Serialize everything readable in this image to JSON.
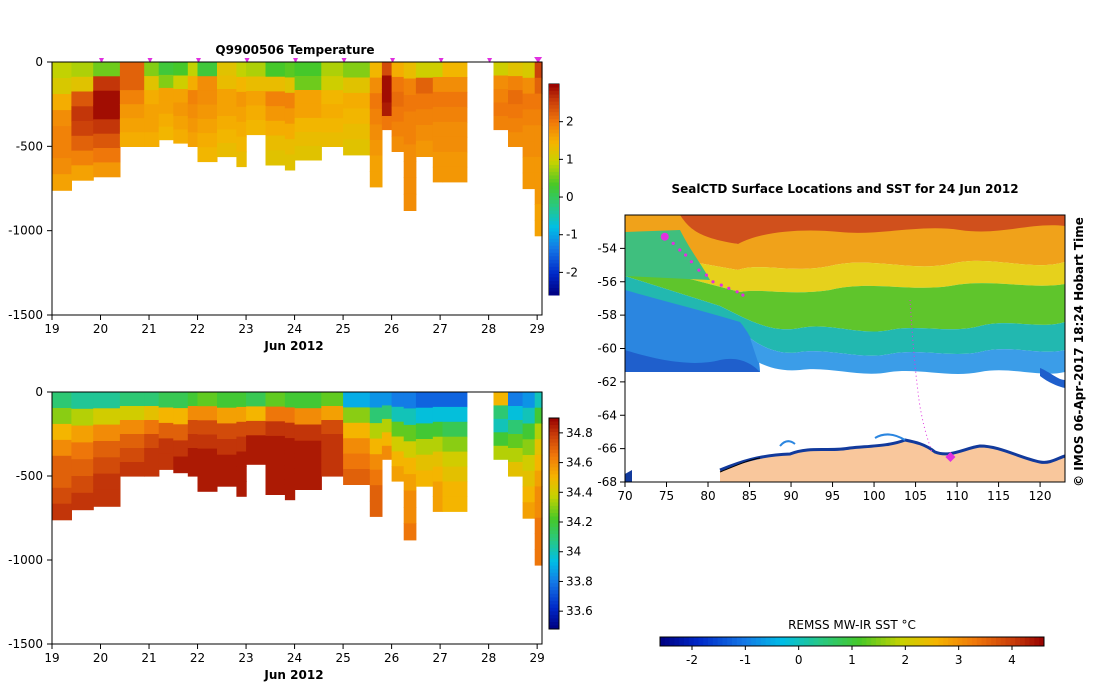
{
  "chart_data": [
    {
      "type": "heatmap",
      "title": "Q9900506  Temperature",
      "xlabel": "Jun 2012",
      "ylabel": "",
      "x_ticks": [
        "19",
        "20",
        "21",
        "22",
        "23",
        "24",
        "25",
        "26",
        "27",
        "28",
        "29"
      ],
      "y_ticks": [
        "0",
        "-500",
        "-1000",
        "-1500"
      ],
      "xlim": [
        19,
        29.1
      ],
      "ylim": [
        -1500,
        0
      ],
      "colorbar_ticks": [
        "2",
        "1",
        "0",
        "-1",
        "-2"
      ],
      "colorbar_range": [
        -2.6,
        3.0
      ],
      "markers": [
        20,
        21,
        22,
        23,
        24,
        25,
        26,
        27,
        28,
        29
      ],
      "profiles": [
        {
          "start": 19.0,
          "end": 19.4,
          "depth": 760,
          "values": [
            0.9,
            1.1,
            1.5,
            1.8,
            1.9,
            1.9,
            1.8,
            1.6
          ]
        },
        {
          "start": 19.4,
          "end": 19.85,
          "depth": 700,
          "values": [
            0.8,
            1.2,
            2.3,
            2.6,
            2.5,
            2.2,
            1.9,
            1.6
          ]
        },
        {
          "start": 19.85,
          "end": 20.4,
          "depth": 680,
          "values": [
            0.5,
            2.6,
            2.9,
            2.9,
            2.6,
            2.3,
            2.0,
            1.7
          ]
        },
        {
          "start": 20.4,
          "end": 20.9,
          "depth": 500,
          "values": [
            2.2,
            2.2,
            1.9,
            1.7,
            1.6,
            1.5
          ]
        },
        {
          "start": 20.9,
          "end": 21.2,
          "depth": 500,
          "values": [
            0.6,
            1.2,
            1.5,
            1.6,
            1.6,
            1.5
          ]
        },
        {
          "start": 21.2,
          "end": 21.5,
          "depth": 460,
          "values": [
            0.2,
            0.6,
            1.6,
            1.6,
            1.5,
            1.4
          ]
        },
        {
          "start": 21.5,
          "end": 21.8,
          "depth": 480,
          "values": [
            0.3,
            1.0,
            1.6,
            1.7,
            1.6,
            1.5
          ]
        },
        {
          "start": 21.8,
          "end": 22.0,
          "depth": 500,
          "values": [
            0.9,
            1.5,
            1.9,
            1.8,
            1.7,
            1.6
          ]
        },
        {
          "start": 22.0,
          "end": 22.4,
          "depth": 590,
          "values": [
            0.2,
            1.8,
            1.8,
            1.7,
            1.6,
            1.5,
            1.4
          ]
        },
        {
          "start": 22.4,
          "end": 22.8,
          "depth": 560,
          "values": [
            1.2,
            1.3,
            1.6,
            1.6,
            1.5,
            1.4,
            1.3
          ]
        },
        {
          "start": 22.8,
          "end": 23.0,
          "depth": 620,
          "values": [
            0.9,
            1.4,
            1.7,
            1.6,
            1.5,
            1.4,
            1.3
          ]
        },
        {
          "start": 23.0,
          "end": 23.4,
          "depth": 430,
          "values": [
            0.8,
            1.3,
            1.6,
            1.5,
            1.4
          ]
        },
        {
          "start": 23.4,
          "end": 23.8,
          "depth": 610,
          "values": [
            0.3,
            1.3,
            1.9,
            1.7,
            1.5,
            1.3,
            1.2
          ]
        },
        {
          "start": 23.8,
          "end": 24.0,
          "depth": 640,
          "values": [
            0.4,
            1.2,
            1.9,
            1.7,
            1.5,
            1.3,
            1.2
          ]
        },
        {
          "start": 24.0,
          "end": 24.55,
          "depth": 580,
          "values": [
            0.3,
            0.5,
            1.6,
            1.6,
            1.4,
            1.3,
            1.2
          ]
        },
        {
          "start": 24.55,
          "end": 25.0,
          "depth": 500,
          "values": [
            0.8,
            1.0,
            1.4,
            1.5,
            1.4,
            1.3
          ]
        },
        {
          "start": 25.0,
          "end": 25.55,
          "depth": 550,
          "values": [
            0.6,
            1.2,
            1.5,
            1.4,
            1.3,
            1.2
          ]
        },
        {
          "start": 25.55,
          "end": 25.8,
          "depth": 740,
          "values": [
            1.4,
            1.8,
            2.0,
            1.9,
            1.8,
            1.7,
            1.6,
            1.6
          ]
        },
        {
          "start": 25.8,
          "end": 26.0,
          "depth": 400,
          "values": [
            2.4,
            2.9,
            2.9,
            2.8,
            2.0
          ]
        },
        {
          "start": 26.0,
          "end": 26.25,
          "depth": 530,
          "values": [
            1.5,
            2.0,
            2.1,
            2.0,
            1.9,
            1.8
          ]
        },
        {
          "start": 26.25,
          "end": 26.5,
          "depth": 880,
          "values": [
            1.3,
            1.9,
            2.0,
            1.9,
            1.9,
            1.8,
            1.8,
            1.8,
            1.8
          ]
        },
        {
          "start": 26.5,
          "end": 26.85,
          "depth": 560,
          "values": [
            1.0,
            2.2,
            2.0,
            1.9,
            1.8,
            1.7
          ]
        },
        {
          "start": 26.85,
          "end": 27.05,
          "depth": 710,
          "values": [
            1.0,
            1.8,
            2.0,
            1.9,
            1.8,
            1.8,
            1.7,
            1.7
          ]
        },
        {
          "start": 27.05,
          "end": 27.55,
          "depth": 710,
          "values": [
            1.4,
            1.8,
            2.0,
            1.9,
            1.8,
            1.8,
            1.7,
            1.7
          ]
        },
        {
          "start": 28.1,
          "end": 28.4,
          "depth": 400,
          "values": [
            1.0,
            1.8,
            1.9,
            2.0,
            1.9
          ]
        },
        {
          "start": 28.4,
          "end": 28.7,
          "depth": 500,
          "values": [
            1.2,
            1.9,
            2.1,
            2.0,
            1.9,
            1.8
          ]
        },
        {
          "start": 28.7,
          "end": 28.95,
          "depth": 750,
          "values": [
            1.1,
            1.8,
            2.0,
            1.9,
            1.8,
            1.8,
            1.7,
            1.7
          ]
        },
        {
          "start": 28.95,
          "end": 29.1,
          "depth": 1030,
          "values": [
            2.5,
            2.2,
            2.0,
            1.9,
            1.8,
            1.8,
            1.7,
            1.7,
            1.7,
            1.6,
            1.6
          ]
        }
      ]
    },
    {
      "type": "heatmap",
      "title": "",
      "xlabel": "Jun 2012",
      "ylabel": "",
      "x_ticks": [
        "19",
        "20",
        "21",
        "22",
        "23",
        "24",
        "25",
        "26",
        "27",
        "28",
        "29"
      ],
      "y_ticks": [
        "0",
        "-500",
        "-1000",
        "-1500"
      ],
      "xlim": [
        19,
        29.1
      ],
      "ylim": [
        -1500,
        0
      ],
      "colorbar_ticks": [
        "34.8",
        "34.6",
        "34.4",
        "34.2",
        "34",
        "33.8",
        "33.6"
      ],
      "colorbar_range": [
        33.48,
        34.9
      ],
      "profiles": [
        {
          "start": 19.0,
          "end": 19.4,
          "depth": 760,
          "values": [
            34.1,
            34.3,
            34.5,
            34.6,
            34.7,
            34.7,
            34.75,
            34.8
          ]
        },
        {
          "start": 19.4,
          "end": 19.85,
          "depth": 700,
          "values": [
            34.05,
            34.35,
            34.55,
            34.65,
            34.7,
            34.75,
            34.8
          ]
        },
        {
          "start": 19.85,
          "end": 20.4,
          "depth": 680,
          "values": [
            34.05,
            34.4,
            34.6,
            34.7,
            34.75,
            34.8,
            34.8
          ]
        },
        {
          "start": 20.4,
          "end": 20.9,
          "depth": 500,
          "values": [
            34.1,
            34.4,
            34.6,
            34.7,
            34.75,
            34.8
          ]
        },
        {
          "start": 20.9,
          "end": 21.2,
          "depth": 500,
          "values": [
            34.1,
            34.45,
            34.65,
            34.75,
            34.8,
            34.8
          ]
        },
        {
          "start": 21.2,
          "end": 21.5,
          "depth": 460,
          "values": [
            34.15,
            34.5,
            34.7,
            34.8,
            34.8
          ]
        },
        {
          "start": 21.5,
          "end": 21.8,
          "depth": 480,
          "values": [
            34.15,
            34.5,
            34.7,
            34.8,
            34.85
          ]
        },
        {
          "start": 21.8,
          "end": 22.0,
          "depth": 500,
          "values": [
            34.2,
            34.6,
            34.75,
            34.8,
            34.85,
            34.85
          ]
        },
        {
          "start": 22.0,
          "end": 22.4,
          "depth": 590,
          "values": [
            34.25,
            34.6,
            34.75,
            34.8,
            34.85,
            34.85,
            34.85
          ]
        },
        {
          "start": 22.4,
          "end": 22.8,
          "depth": 560,
          "values": [
            34.2,
            34.55,
            34.75,
            34.8,
            34.85,
            34.85
          ]
        },
        {
          "start": 22.8,
          "end": 23.0,
          "depth": 620,
          "values": [
            34.2,
            34.55,
            34.75,
            34.8,
            34.85,
            34.85,
            34.85
          ]
        },
        {
          "start": 23.0,
          "end": 23.4,
          "depth": 430,
          "values": [
            34.15,
            34.5,
            34.75,
            34.85,
            34.85
          ]
        },
        {
          "start": 23.4,
          "end": 23.8,
          "depth": 610,
          "values": [
            34.25,
            34.65,
            34.8,
            34.85,
            34.85,
            34.85,
            34.85
          ]
        },
        {
          "start": 23.8,
          "end": 24.0,
          "depth": 640,
          "values": [
            34.2,
            34.65,
            34.8,
            34.85,
            34.85,
            34.85,
            34.85
          ]
        },
        {
          "start": 24.0,
          "end": 24.55,
          "depth": 580,
          "values": [
            34.2,
            34.6,
            34.8,
            34.85,
            34.85,
            34.85
          ]
        },
        {
          "start": 24.55,
          "end": 25.0,
          "depth": 500,
          "values": [
            34.25,
            34.55,
            34.75,
            34.8,
            34.8,
            34.8
          ]
        },
        {
          "start": 25.0,
          "end": 25.55,
          "depth": 550,
          "values": [
            33.9,
            34.3,
            34.5,
            34.6,
            34.65,
            34.7
          ]
        },
        {
          "start": 25.55,
          "end": 25.8,
          "depth": 740,
          "values": [
            33.85,
            34.1,
            34.35,
            34.5,
            34.6,
            34.65,
            34.7,
            34.7
          ]
        },
        {
          "start": 25.8,
          "end": 26.0,
          "depth": 400,
          "values": [
            33.85,
            34.1,
            34.35,
            34.5,
            34.6
          ]
        },
        {
          "start": 26.0,
          "end": 26.25,
          "depth": 530,
          "values": [
            33.8,
            34.0,
            34.25,
            34.4,
            34.5,
            34.55
          ]
        },
        {
          "start": 26.25,
          "end": 26.5,
          "depth": 880,
          "values": [
            33.8,
            34.0,
            34.25,
            34.4,
            34.5,
            34.55,
            34.6,
            34.6,
            34.65
          ]
        },
        {
          "start": 26.5,
          "end": 26.85,
          "depth": 560,
          "values": [
            33.75,
            33.95,
            34.2,
            34.35,
            34.45,
            34.5
          ]
        },
        {
          "start": 26.85,
          "end": 27.05,
          "depth": 710,
          "values": [
            33.75,
            33.95,
            34.2,
            34.35,
            34.45,
            34.5,
            34.55,
            34.55
          ]
        },
        {
          "start": 27.05,
          "end": 27.55,
          "depth": 710,
          "values": [
            33.75,
            33.95,
            34.15,
            34.3,
            34.4,
            34.45,
            34.5,
            34.5
          ]
        },
        {
          "start": 28.1,
          "end": 28.4,
          "depth": 400,
          "values": [
            34.5,
            34.1,
            34.0,
            34.2,
            34.35
          ]
        },
        {
          "start": 28.4,
          "end": 28.7,
          "depth": 500,
          "values": [
            33.8,
            33.95,
            34.1,
            34.25,
            34.35,
            34.45
          ]
        },
        {
          "start": 28.7,
          "end": 28.95,
          "depth": 750,
          "values": [
            33.85,
            34.0,
            34.2,
            34.3,
            34.4,
            34.45,
            34.5,
            34.55
          ]
        },
        {
          "start": 28.95,
          "end": 29.1,
          "depth": 1030,
          "values": [
            34.0,
            34.2,
            34.35,
            34.45,
            34.5,
            34.55,
            34.6,
            34.6,
            34.65,
            34.65,
            34.65
          ]
        }
      ]
    },
    {
      "type": "heatmap",
      "title": "SealCTD Surface Locations and SST for 24 Jun 2012",
      "xlabel": "",
      "ylabel": "",
      "x_ticks": [
        "70",
        "75",
        "80",
        "85",
        "90",
        "95",
        "100",
        "105",
        "110",
        "115",
        "120"
      ],
      "y_ticks": [
        "-54",
        "-56",
        "-58",
        "-60",
        "-62",
        "-64",
        "-66",
        "-68"
      ],
      "xlim": [
        70,
        123
      ],
      "ylim": [
        -68,
        -52
      ],
      "colorbar_label": "REMSS MW-IR SST °C",
      "colorbar_ticks": [
        "-2",
        "-1",
        "0",
        "1",
        "2",
        "3",
        "4"
      ],
      "colorbar_range": [
        -2.6,
        4.6
      ],
      "side_label": "© IMOS 06-Apr-2017 18:24 Hobart Time",
      "track_points": [
        [
          74.8,
          -53.3
        ],
        [
          75.8,
          -53.7
        ],
        [
          76.6,
          -54.1
        ],
        [
          77.3,
          -54.4
        ],
        [
          78.0,
          -54.8
        ],
        [
          78.9,
          -55.3
        ],
        [
          79.8,
          -55.6
        ],
        [
          80.6,
          -56.0
        ],
        [
          81.6,
          -56.2
        ],
        [
          82.5,
          -56.4
        ],
        [
          83.5,
          -56.6
        ],
        [
          84.2,
          -56.8
        ]
      ],
      "track_end": [
        109.2,
        -66.5
      ]
    }
  ],
  "colors": {
    "marker": "#e030e0",
    "land": "#f9c79c",
    "ice_edge": "#123a9c"
  }
}
